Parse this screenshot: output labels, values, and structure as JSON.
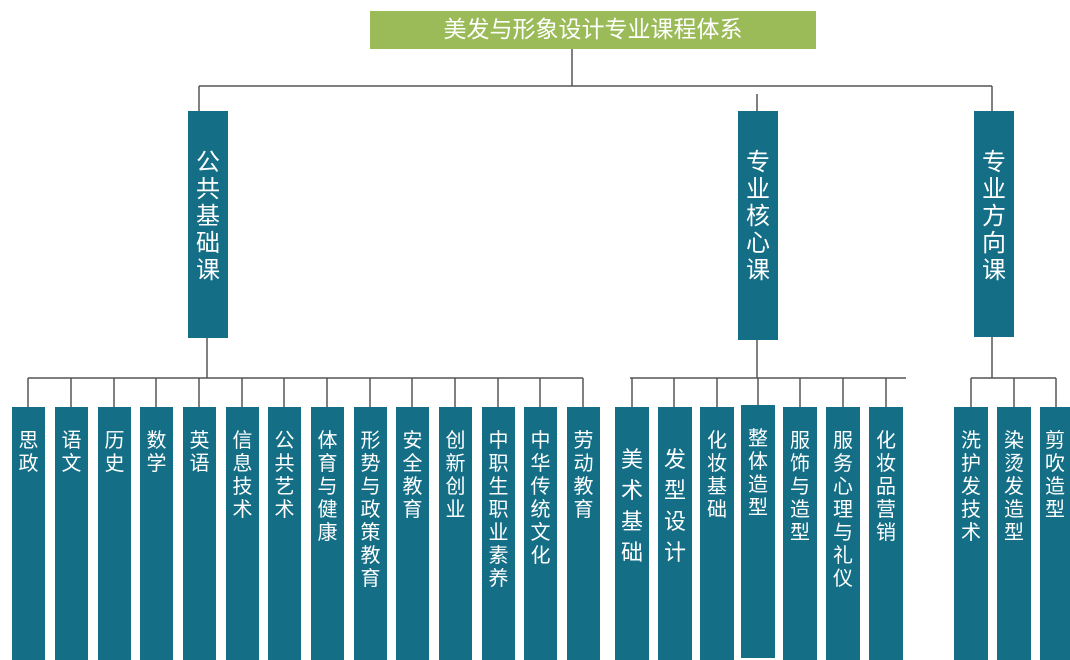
{
  "root": {
    "title": "美发与形象设计专业课程体系"
  },
  "categories": [
    {
      "label": "公共基础课",
      "courses": [
        "思政",
        "语文",
        "历史",
        "数学",
        "英语",
        "信息技术",
        "公共艺术",
        "体育与健康",
        "形势与政策教育",
        "安全教育",
        "创新创业",
        "中职生职业素养",
        "中华传统文化",
        "劳动教育"
      ]
    },
    {
      "label": "专业核心课",
      "courses": [
        "美术基础",
        "发型设计",
        "化妆基础",
        "整体造型",
        "服饰与造型",
        "服务心理与礼仪",
        "化妆品营销"
      ]
    },
    {
      "label": "专业方向课",
      "courses": [
        "洗护发技术",
        "染烫发造型",
        "剪吹造型"
      ]
    }
  ],
  "colors": {
    "root_fill": "#9bbb59",
    "box_fill": "#136e86",
    "line": "#555555",
    "text": "#ffffff"
  }
}
